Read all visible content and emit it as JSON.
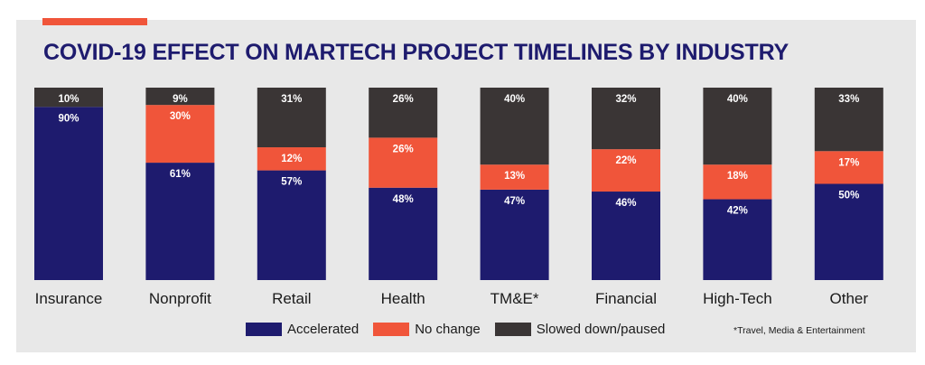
{
  "title": "COVID-19 EFFECT ON MARTECH PROJECT TIMELINES BY INDUSTRY",
  "footnote": "*Travel, Media & Entertainment",
  "colors": {
    "accelerated": "#1e1b6e",
    "no_change": "#f0553a",
    "slowed": "#3a3535",
    "title": "#1e1b6e",
    "accent": "#f0553a",
    "panel": "#e8e8e8"
  },
  "chart_data": {
    "type": "bar",
    "stacked": true,
    "title": "COVID-19 EFFECT ON MARTECH PROJECT TIMELINES BY INDUSTRY",
    "categories": [
      "Insurance",
      "Nonprofit",
      "Retail",
      "Health",
      "TM&E*",
      "Financial",
      "High-Tech",
      "Other"
    ],
    "series": [
      {
        "name": "Accelerated",
        "values": [
          90,
          61,
          57,
          48,
          47,
          46,
          42,
          50
        ],
        "labels": [
          "90%",
          "61%",
          "57%",
          "48%",
          "47%",
          "46%",
          "42%",
          "50%"
        ]
      },
      {
        "name": "No change",
        "values": [
          0,
          30,
          12,
          26,
          13,
          22,
          18,
          17
        ],
        "labels": [
          "",
          "30%",
          "12%",
          "26%",
          "13%",
          "22%",
          "18%",
          "17%"
        ]
      },
      {
        "name": "Slowed down/paused",
        "values": [
          10,
          9,
          31,
          26,
          40,
          32,
          40,
          33
        ],
        "labels": [
          "10%",
          "9%",
          "31%",
          "26%",
          "40%",
          "32%",
          "40%",
          "33%"
        ]
      }
    ],
    "ylim": [
      0,
      100
    ],
    "legend_position": "bottom"
  }
}
